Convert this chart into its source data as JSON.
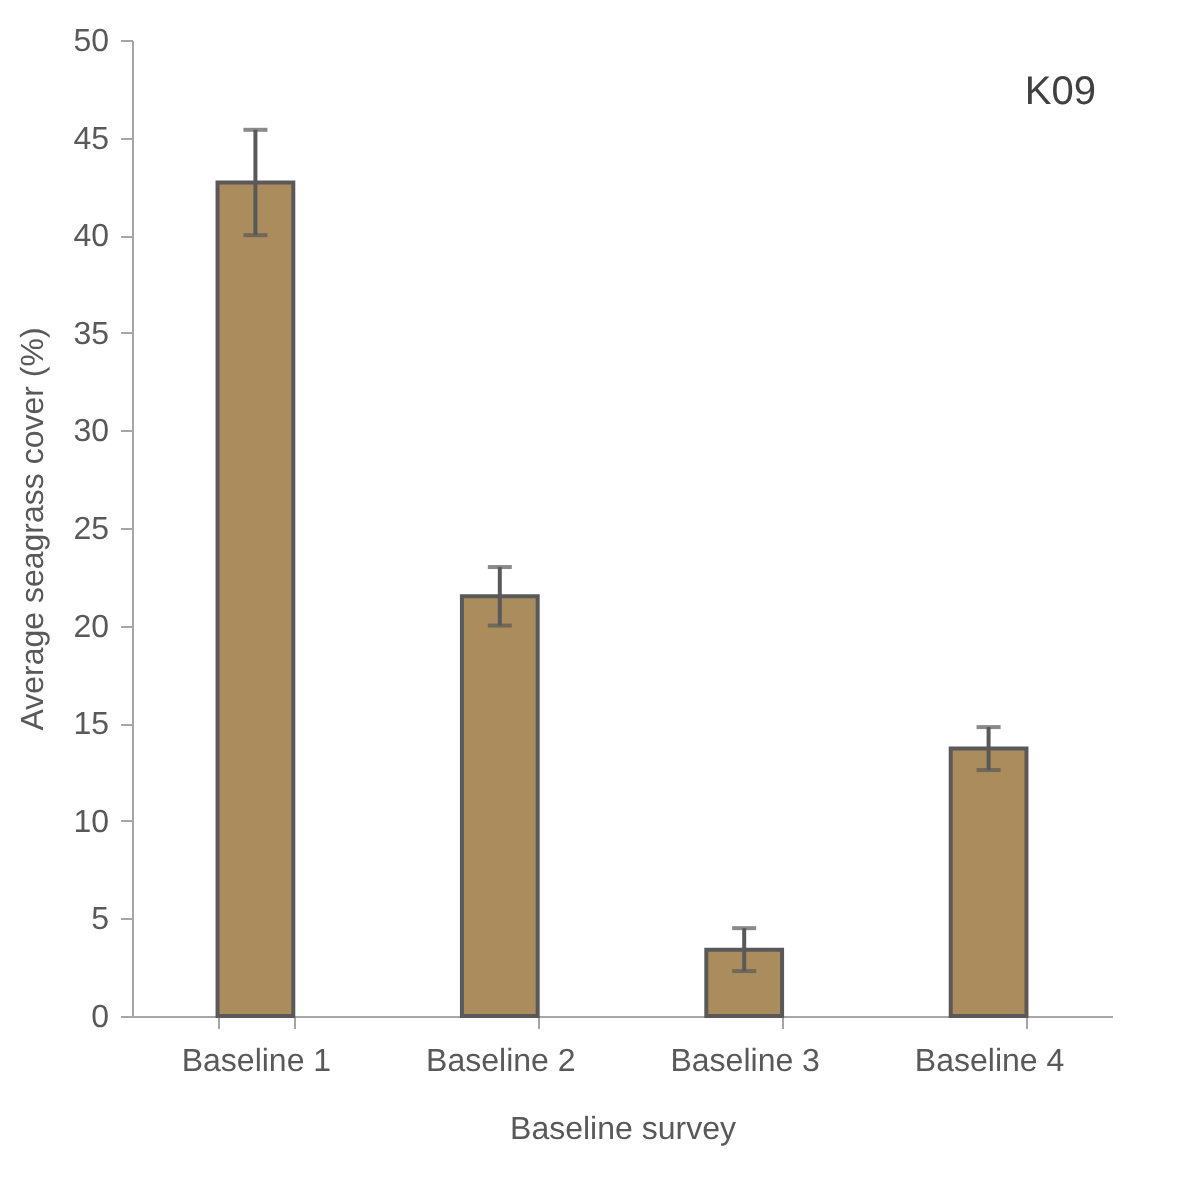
{
  "chart_data": {
    "type": "bar",
    "xlabel": "Baseline survey",
    "ylabel": "Average seagrass cover (%)",
    "annotations": [
      "K09"
    ],
    "categories": [
      "Baseline 1",
      "Baseline 2",
      "Baseline 3",
      "Baseline 4"
    ],
    "values": [
      42.7,
      21.5,
      3.4,
      13.7
    ],
    "errors": [
      2.7,
      1.5,
      1.1,
      1.1
    ],
    "color": "#ab8c5c",
    "ylim": [
      0,
      50
    ],
    "yticks": [
      0,
      5,
      10,
      15,
      20,
      25,
      30,
      35,
      40,
      45,
      50
    ],
    "grid": false
  }
}
